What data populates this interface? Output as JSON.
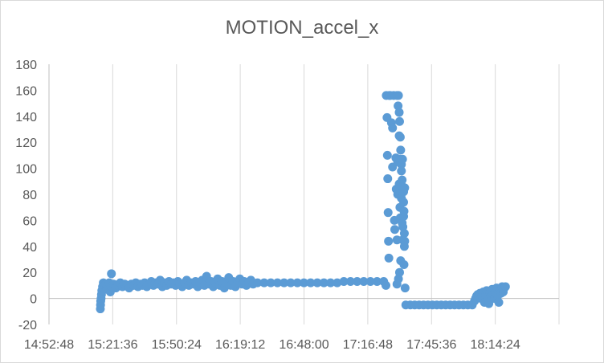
{
  "chart_data": {
    "type": "scatter",
    "title": "MOTION_accel_x",
    "xlabel": "",
    "ylabel": "",
    "ylim": [
      -20,
      180
    ],
    "yticks": [
      -20,
      0,
      20,
      40,
      60,
      80,
      100,
      120,
      140,
      160,
      180
    ],
    "x_axis_unit": "time of day",
    "xlim": [
      "14:52:48",
      "18:43:12"
    ],
    "xticks": [
      "14:52:48",
      "15:21:36",
      "15:50:24",
      "16:19:12",
      "16:48:00",
      "17:16:48",
      "17:45:36",
      "18:14:24"
    ],
    "grid": {
      "vertical": true,
      "horizontal": false
    },
    "legend": "none",
    "marker_color": "#5b9bd5",
    "series": [
      {
        "points": [
          [
            "15:16:00",
            -8
          ],
          [
            "15:16:05",
            -5
          ],
          [
            "15:16:10",
            -2
          ],
          [
            "15:16:20",
            0
          ],
          [
            "15:16:30",
            3
          ],
          [
            "15:16:40",
            6
          ],
          [
            "15:17:00",
            9
          ],
          [
            "15:17:20",
            12
          ],
          [
            "15:17:40",
            8
          ],
          [
            "15:18:00",
            10
          ],
          [
            "15:18:30",
            11
          ],
          [
            "15:19:00",
            7
          ],
          [
            "15:19:30",
            10
          ],
          [
            "15:20:00",
            12
          ],
          [
            "15:20:30",
            5
          ],
          [
            "15:21:00",
            19
          ],
          [
            "15:21:30",
            9
          ],
          [
            "15:22:00",
            11
          ],
          [
            "15:23:00",
            8
          ],
          [
            "15:24:00",
            10
          ],
          [
            "15:25:00",
            12
          ],
          [
            "15:26:00",
            9
          ],
          [
            "15:27:00",
            11
          ],
          [
            "15:28:00",
            10
          ],
          [
            "15:29:00",
            8
          ],
          [
            "15:30:00",
            11
          ],
          [
            "15:31:00",
            10
          ],
          [
            "15:32:00",
            12
          ],
          [
            "15:33:00",
            9
          ],
          [
            "15:34:00",
            11
          ],
          [
            "15:35:00",
            10
          ],
          [
            "15:36:00",
            12
          ],
          [
            "15:37:00",
            9
          ],
          [
            "15:38:00",
            11
          ],
          [
            "15:39:00",
            13
          ],
          [
            "15:40:00",
            10
          ],
          [
            "15:41:00",
            12
          ],
          [
            "15:42:00",
            11
          ],
          [
            "15:43:00",
            14
          ],
          [
            "15:44:00",
            9
          ],
          [
            "15:45:00",
            12
          ],
          [
            "15:46:00",
            10
          ],
          [
            "15:47:00",
            13
          ],
          [
            "15:48:00",
            11
          ],
          [
            "15:49:00",
            12
          ],
          [
            "15:50:00",
            10
          ],
          [
            "15:51:00",
            13
          ],
          [
            "15:52:00",
            11
          ],
          [
            "15:53:00",
            9
          ],
          [
            "15:54:00",
            12
          ],
          [
            "15:55:00",
            14
          ],
          [
            "15:56:00",
            10
          ],
          [
            "15:57:00",
            12
          ],
          [
            "15:58:00",
            11
          ],
          [
            "15:59:00",
            13
          ],
          [
            "16:00:00",
            9
          ],
          [
            "16:01:00",
            12
          ],
          [
            "16:02:00",
            14
          ],
          [
            "16:03:00",
            10
          ],
          [
            "16:04:00",
            17
          ],
          [
            "16:05:00",
            11
          ],
          [
            "16:06:00",
            13
          ],
          [
            "16:07:00",
            9
          ],
          [
            "16:08:00",
            12
          ],
          [
            "16:09:00",
            15
          ],
          [
            "16:10:00",
            10
          ],
          [
            "16:11:00",
            13
          ],
          [
            "16:12:00",
            8
          ],
          [
            "16:13:00",
            12
          ],
          [
            "16:14:00",
            16
          ],
          [
            "16:15:00",
            10
          ],
          [
            "16:16:00",
            13
          ],
          [
            "16:17:00",
            9
          ],
          [
            "16:18:00",
            12
          ],
          [
            "16:19:00",
            15
          ],
          [
            "16:20:00",
            11
          ],
          [
            "16:21:00",
            13
          ],
          [
            "16:22:00",
            10
          ],
          [
            "16:23:00",
            12
          ],
          [
            "16:24:00",
            14
          ],
          [
            "16:25:00",
            11
          ],
          [
            "16:27:00",
            12
          ],
          [
            "16:30:00",
            12
          ],
          [
            "16:33:00",
            12
          ],
          [
            "16:36:00",
            12
          ],
          [
            "16:39:00",
            12
          ],
          [
            "16:42:00",
            12
          ],
          [
            "16:45:00",
            12
          ],
          [
            "16:48:00",
            12
          ],
          [
            "16:51:00",
            12
          ],
          [
            "16:54:00",
            12
          ],
          [
            "16:57:00",
            12
          ],
          [
            "17:00:00",
            12
          ],
          [
            "17:03:00",
            12
          ],
          [
            "17:06:00",
            13
          ],
          [
            "17:09:00",
            13
          ],
          [
            "17:12:00",
            13
          ],
          [
            "17:15:00",
            13
          ],
          [
            "17:18:00",
            13
          ],
          [
            "17:21:00",
            13
          ],
          [
            "17:24:00",
            13
          ],
          [
            "17:25:00",
            10
          ],
          [
            "17:25:10",
            156
          ],
          [
            "17:25:30",
            139
          ],
          [
            "17:25:40",
            110
          ],
          [
            "17:25:50",
            92
          ],
          [
            "17:26:00",
            66
          ],
          [
            "17:26:10",
            44
          ],
          [
            "17:26:20",
            31
          ],
          [
            "17:26:30",
            156
          ],
          [
            "17:27:00",
            156
          ],
          [
            "17:27:30",
            135
          ],
          [
            "17:28:00",
            131
          ],
          [
            "17:28:00",
            101
          ],
          [
            "17:28:30",
            156
          ],
          [
            "17:28:50",
            60
          ],
          [
            "17:29:00",
            53
          ],
          [
            "17:29:30",
            108
          ],
          [
            "17:29:40",
            84
          ],
          [
            "17:30:00",
            156
          ],
          [
            "17:30:00",
            45
          ],
          [
            "17:30:00",
            11
          ],
          [
            "17:30:20",
            105
          ],
          [
            "17:30:20",
            80
          ],
          [
            "17:30:30",
            148
          ],
          [
            "17:30:40",
            156
          ],
          [
            "17:30:40",
            15
          ],
          [
            "17:31:00",
            143
          ],
          [
            "17:31:00",
            125
          ],
          [
            "17:31:00",
            88
          ],
          [
            "17:31:10",
            136
          ],
          [
            "17:31:10",
            20
          ],
          [
            "17:31:20",
            107
          ],
          [
            "17:31:20",
            70
          ],
          [
            "17:31:30",
            124
          ],
          [
            "17:31:30",
            62
          ],
          [
            "17:31:40",
            114
          ],
          [
            "17:31:40",
            29
          ],
          [
            "17:32:00",
            103
          ],
          [
            "17:32:00",
            98
          ],
          [
            "17:32:00",
            77
          ],
          [
            "17:32:20",
            91
          ],
          [
            "17:32:20",
            58
          ],
          [
            "17:32:30",
            107
          ],
          [
            "17:32:30",
            86
          ],
          [
            "17:32:40",
            55
          ],
          [
            "17:32:40",
            45
          ],
          [
            "17:33:00",
            82
          ],
          [
            "17:33:00",
            74
          ],
          [
            "17:33:00",
            63
          ],
          [
            "17:33:10",
            67
          ],
          [
            "17:33:10",
            26
          ],
          [
            "17:33:20",
            50
          ],
          [
            "17:33:20",
            40
          ],
          [
            "17:33:30",
            85
          ],
          [
            "17:33:30",
            44
          ],
          [
            "17:33:40",
            8
          ],
          [
            "17:34:00",
            -5
          ],
          [
            "17:36:00",
            -5
          ],
          [
            "17:38:00",
            -5
          ],
          [
            "17:40:00",
            -5
          ],
          [
            "17:42:00",
            -5
          ],
          [
            "17:44:00",
            -5
          ],
          [
            "17:46:00",
            -5
          ],
          [
            "17:48:00",
            -5
          ],
          [
            "17:50:00",
            -5
          ],
          [
            "17:52:00",
            -5
          ],
          [
            "17:54:00",
            -5
          ],
          [
            "17:56:00",
            -5
          ],
          [
            "17:58:00",
            -5
          ],
          [
            "18:00:00",
            -5
          ],
          [
            "18:02:00",
            -5
          ],
          [
            "18:04:00",
            -5
          ],
          [
            "18:05:00",
            -2
          ],
          [
            "18:05:30",
            0
          ],
          [
            "18:06:00",
            2
          ],
          [
            "18:06:30",
            3
          ],
          [
            "18:07:00",
            1
          ],
          [
            "18:07:30",
            4
          ],
          [
            "18:08:00",
            0
          ],
          [
            "18:08:30",
            2
          ],
          [
            "18:09:00",
            5
          ],
          [
            "18:09:30",
            -3
          ],
          [
            "18:10:00",
            3
          ],
          [
            "18:10:30",
            6
          ],
          [
            "18:11:00",
            1
          ],
          [
            "18:11:30",
            -4
          ],
          [
            "18:12:00",
            4
          ],
          [
            "18:12:30",
            2
          ],
          [
            "18:13:00",
            7
          ],
          [
            "18:13:30",
            3
          ],
          [
            "18:14:00",
            0
          ],
          [
            "18:14:30",
            5
          ],
          [
            "18:15:00",
            8
          ],
          [
            "18:15:30",
            2
          ],
          [
            "18:16:00",
            -3
          ],
          [
            "18:16:30",
            6
          ],
          [
            "18:17:00",
            4
          ],
          [
            "18:17:30",
            9
          ],
          [
            "18:18:00",
            5
          ],
          [
            "18:18:30",
            8
          ],
          [
            "18:19:00",
            9
          ]
        ]
      }
    ]
  }
}
